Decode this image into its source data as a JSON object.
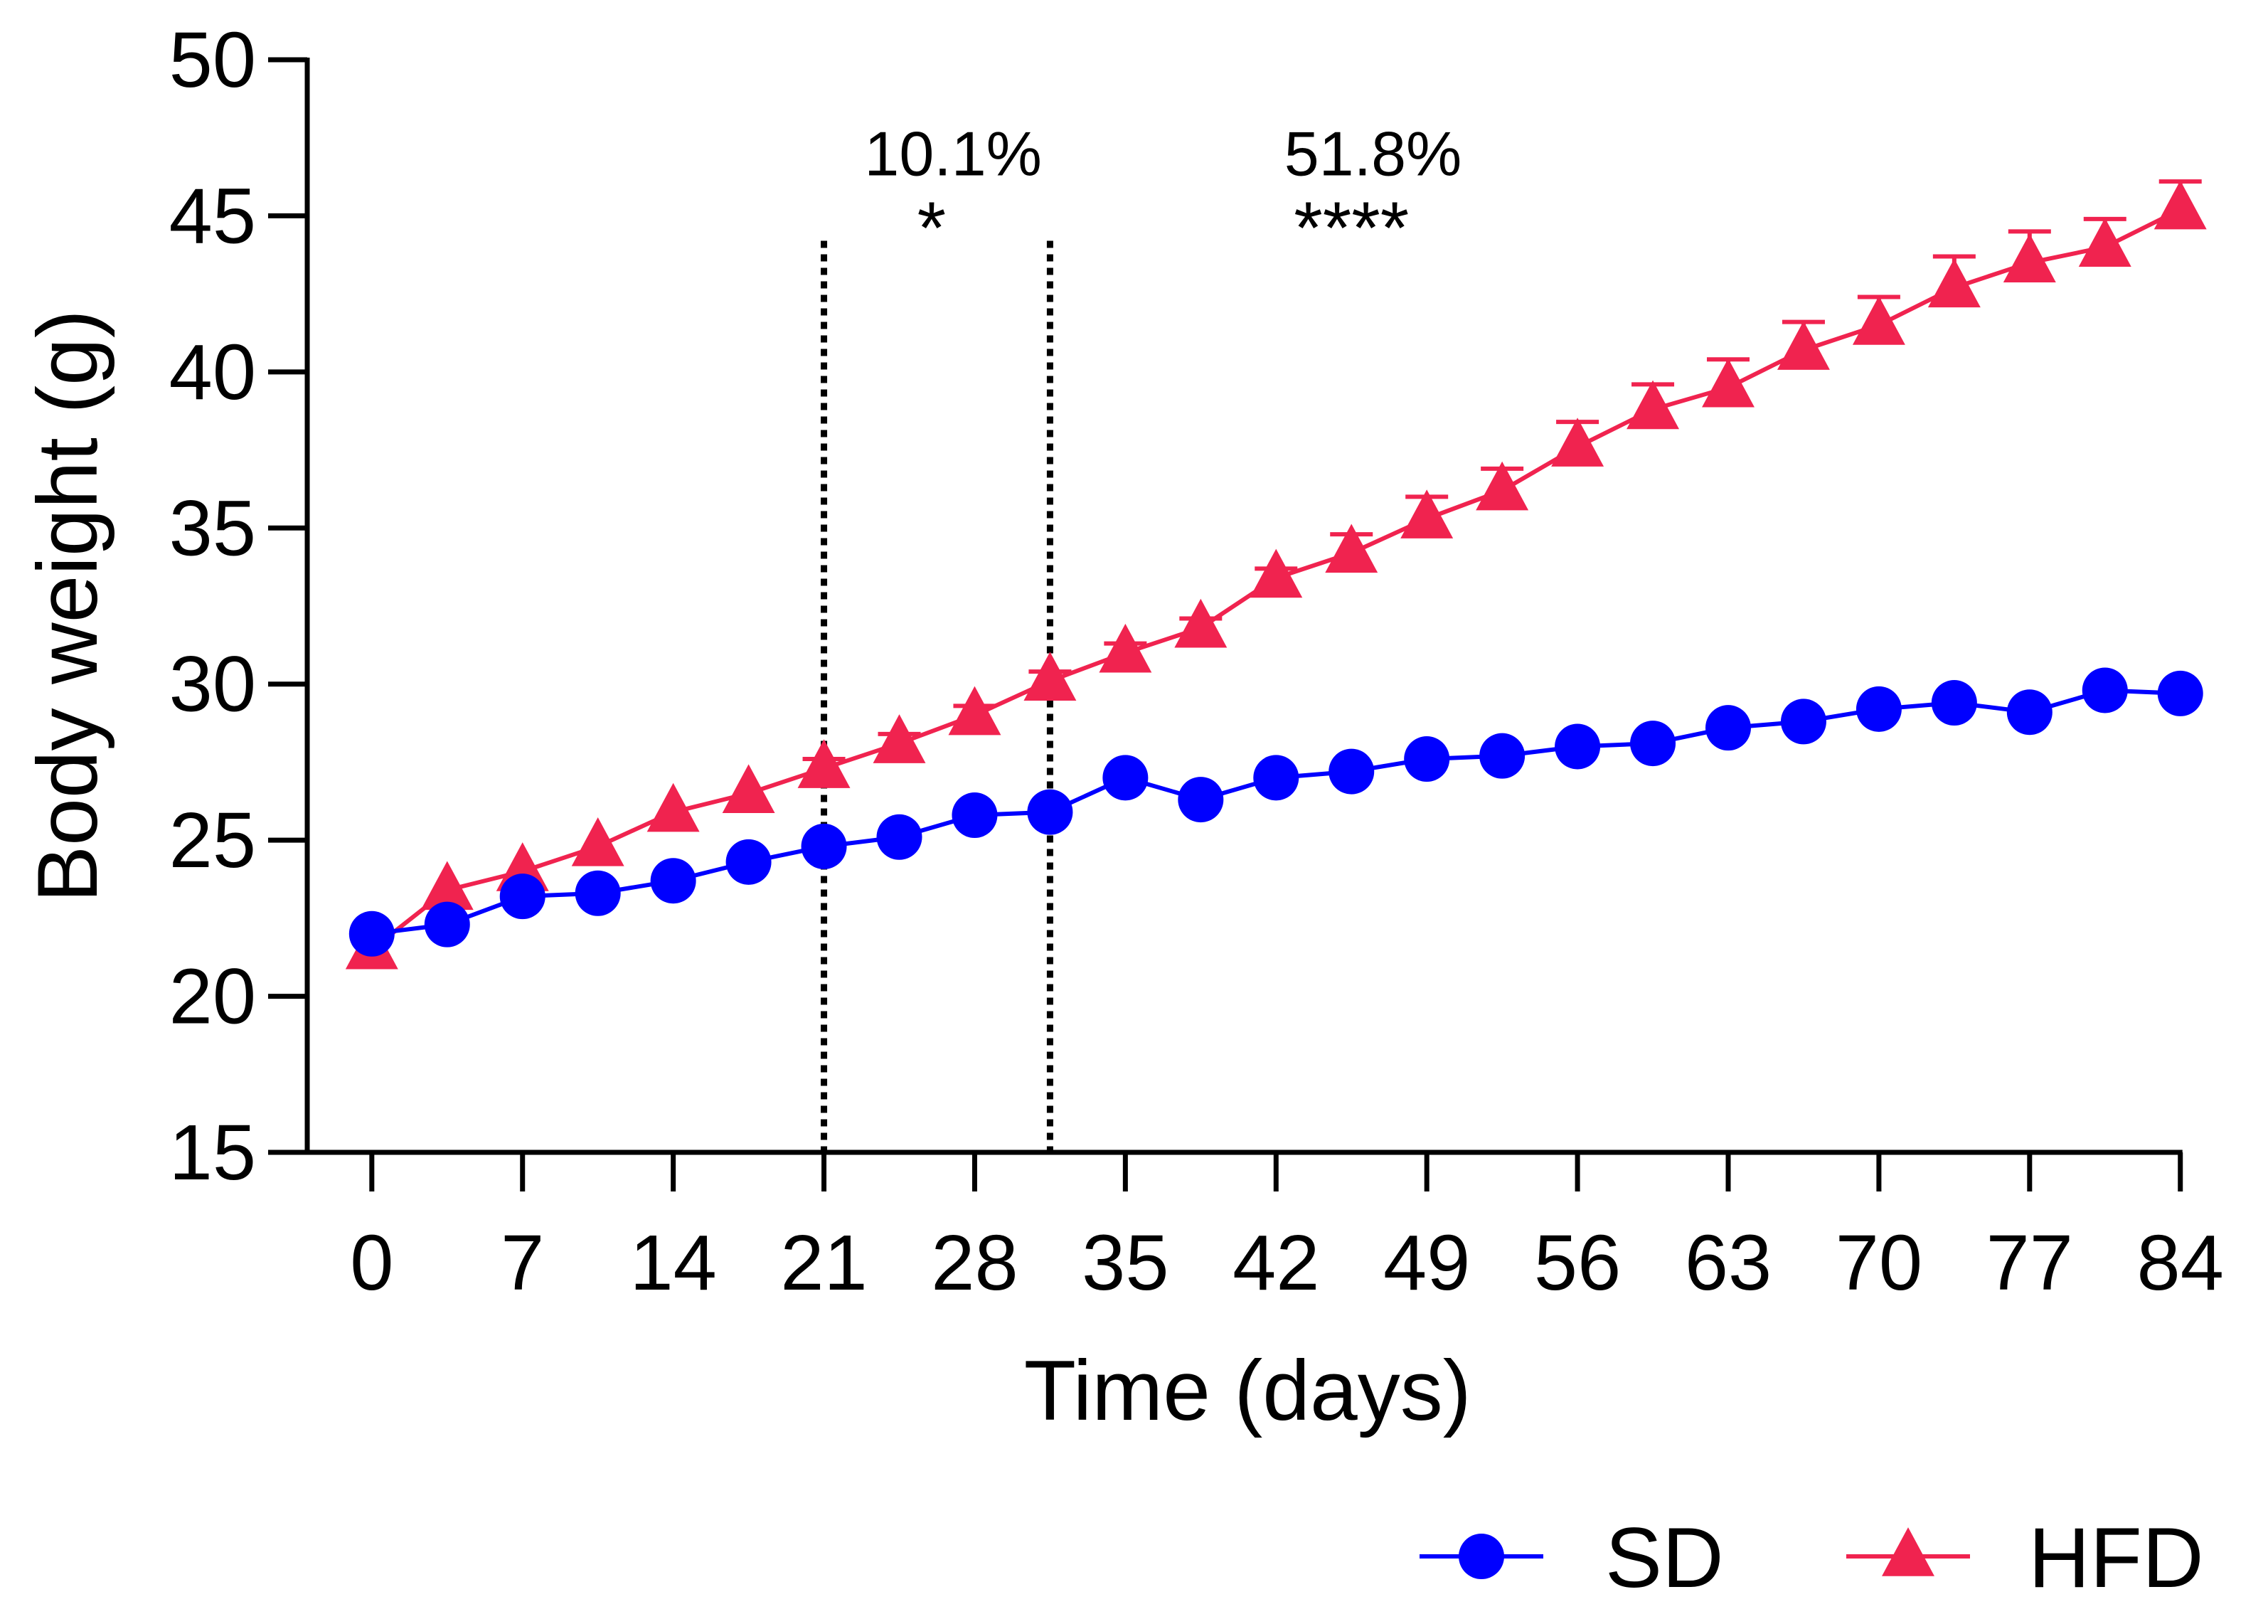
{
  "chart_data": {
    "type": "line",
    "xlabel": "Time (days)",
    "ylabel": "Body weight (g)",
    "xlim": [
      -3,
      85
    ],
    "ylim": [
      15,
      50
    ],
    "xticks": [
      0,
      7,
      14,
      21,
      28,
      35,
      42,
      49,
      56,
      63,
      70,
      77,
      84
    ],
    "yticks": [
      15,
      20,
      25,
      30,
      35,
      40,
      45,
      50
    ],
    "x": [
      0,
      3.5,
      7,
      10.5,
      14,
      17.5,
      21,
      24.5,
      28,
      31.5,
      35,
      38.5,
      42,
      45.5,
      49,
      52.5,
      56,
      59.5,
      63,
      66.5,
      70,
      73.5,
      77,
      80.5,
      84
    ],
    "series": [
      {
        "name": "SD",
        "color": "#0000ff",
        "marker": "circle",
        "values": [
          22.0,
          22.3,
          23.2,
          23.3,
          23.7,
          24.3,
          24.8,
          25.1,
          25.8,
          25.9,
          27.0,
          26.3,
          27.0,
          27.2,
          27.6,
          27.7,
          28.0,
          28.1,
          28.6,
          28.8,
          29.2,
          29.4,
          29.1,
          29.8,
          29.7
        ],
        "errors": [
          0.2,
          0.2,
          0.2,
          0.2,
          0.2,
          0.2,
          0.2,
          0.2,
          0.2,
          0.2,
          0.2,
          0.2,
          0.2,
          0.2,
          0.2,
          0.2,
          0.2,
          0.2,
          0.2,
          0.2,
          0.2,
          0.2,
          0.2,
          0.2,
          0.2
        ]
      },
      {
        "name": "HFD",
        "color": "#f0234f",
        "marker": "triangle",
        "values": [
          21.5,
          23.4,
          24.0,
          24.8,
          25.9,
          26.5,
          27.3,
          28.1,
          29.0,
          30.1,
          31.0,
          31.8,
          33.4,
          34.2,
          35.3,
          36.2,
          37.6,
          38.8,
          39.5,
          40.7,
          41.5,
          42.7,
          43.5,
          44.0,
          45.2
        ],
        "errors": [
          0.2,
          0.2,
          0.2,
          0.2,
          0.2,
          0.2,
          0.3,
          0.3,
          0.3,
          0.3,
          0.3,
          0.3,
          0.3,
          0.6,
          0.7,
          0.7,
          0.8,
          0.8,
          0.9,
          0.9,
          0.9,
          1.0,
          1.0,
          0.9,
          0.9
        ]
      }
    ],
    "vlines": [
      21,
      31.5
    ],
    "annotations": [
      {
        "text": "10.1%",
        "x": 27,
        "y": 46.3
      },
      {
        "text": "*",
        "x": 26,
        "y": 43.8
      },
      {
        "text": "51.8%",
        "x": 46.5,
        "y": 46.3
      },
      {
        "text": "****",
        "x": 45.5,
        "y": 43.8
      }
    ],
    "legend": {
      "position": "bottom-right",
      "entries": [
        "SD",
        "HFD"
      ]
    }
  }
}
